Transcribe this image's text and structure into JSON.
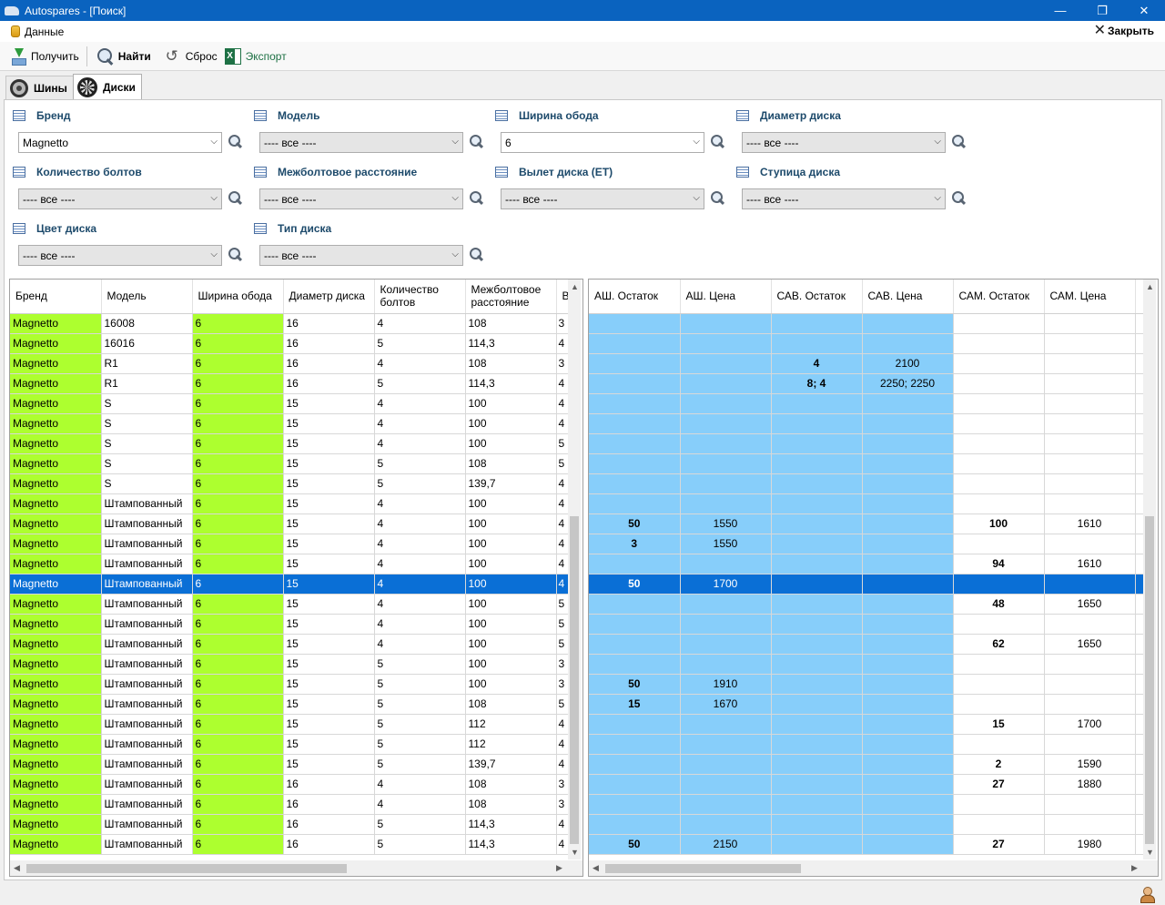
{
  "window": {
    "title": "Autospares - [Поиск]"
  },
  "menu": {
    "data_label": "Данные",
    "close_label": "Закрыть"
  },
  "toolbar": {
    "get_label": "Получить",
    "find_label": "Найти",
    "reset_label": "Сброс",
    "export_label": "Экспорт"
  },
  "tabs": [
    {
      "label": "Шины"
    },
    {
      "label": "Диски"
    }
  ],
  "filters": [
    {
      "label": "Бренд",
      "value": "Magnetto"
    },
    {
      "label": "Модель",
      "value": "---- все ----"
    },
    {
      "label": "Ширина обода",
      "value": "6"
    },
    {
      "label": "Диаметр диска",
      "value": "---- все ----"
    },
    {
      "label": "Количество болтов",
      "value": "---- все ----"
    },
    {
      "label": "Межболтовое расстояние",
      "value": "---- все ----"
    },
    {
      "label": "Вылет диска (ET)",
      "value": "---- все ----"
    },
    {
      "label": "Ступица диска",
      "value": "---- все ----"
    },
    {
      "label": "Цвет диска",
      "value": "---- все ----"
    },
    {
      "label": "Тип диска",
      "value": "---- все ----"
    }
  ],
  "left_grid": {
    "columns": [
      "Бренд",
      "Модель",
      "Ширина обода",
      "Диаметр диска",
      "Количество болтов",
      "Межболтовое расстояние",
      "В("
    ],
    "rows": [
      [
        "Magnetto",
        "16008",
        "6",
        "16",
        "4",
        "108",
        "3"
      ],
      [
        "Magnetto",
        "16016",
        "6",
        "16",
        "5",
        "114,3",
        "4"
      ],
      [
        "Magnetto",
        "R1",
        "6",
        "16",
        "4",
        "108",
        "3"
      ],
      [
        "Magnetto",
        "R1",
        "6",
        "16",
        "5",
        "114,3",
        "4"
      ],
      [
        "Magnetto",
        "S",
        "6",
        "15",
        "4",
        "100",
        "4"
      ],
      [
        "Magnetto",
        "S",
        "6",
        "15",
        "4",
        "100",
        "4"
      ],
      [
        "Magnetto",
        "S",
        "6",
        "15",
        "4",
        "100",
        "5"
      ],
      [
        "Magnetto",
        "S",
        "6",
        "15",
        "5",
        "108",
        "5"
      ],
      [
        "Magnetto",
        "S",
        "6",
        "15",
        "5",
        "139,7",
        "4"
      ],
      [
        "Magnetto",
        "Штампованный",
        "6",
        "15",
        "4",
        "100",
        "4"
      ],
      [
        "Magnetto",
        "Штампованный",
        "6",
        "15",
        "4",
        "100",
        "4"
      ],
      [
        "Magnetto",
        "Штампованный",
        "6",
        "15",
        "4",
        "100",
        "4"
      ],
      [
        "Magnetto",
        "Штампованный",
        "6",
        "15",
        "4",
        "100",
        "4"
      ],
      [
        "Magnetto",
        "Штампованный",
        "6",
        "15",
        "4",
        "100",
        "4"
      ],
      [
        "Magnetto",
        "Штампованный",
        "6",
        "15",
        "4",
        "100",
        "5"
      ],
      [
        "Magnetto",
        "Штампованный",
        "6",
        "15",
        "4",
        "100",
        "5"
      ],
      [
        "Magnetto",
        "Штампованный",
        "6",
        "15",
        "4",
        "100",
        "5"
      ],
      [
        "Magnetto",
        "Штампованный",
        "6",
        "15",
        "5",
        "100",
        "3"
      ],
      [
        "Magnetto",
        "Штампованный",
        "6",
        "15",
        "5",
        "100",
        "3"
      ],
      [
        "Magnetto",
        "Штампованный",
        "6",
        "15",
        "5",
        "108",
        "5"
      ],
      [
        "Magnetto",
        "Штампованный",
        "6",
        "15",
        "5",
        "112",
        "4"
      ],
      [
        "Magnetto",
        "Штампованный",
        "6",
        "15",
        "5",
        "112",
        "4"
      ],
      [
        "Magnetto",
        "Штампованный",
        "6",
        "15",
        "5",
        "139,7",
        "4"
      ],
      [
        "Magnetto",
        "Штампованный",
        "6",
        "16",
        "4",
        "108",
        "3"
      ],
      [
        "Magnetto",
        "Штампованный",
        "6",
        "16",
        "4",
        "108",
        "3"
      ],
      [
        "Magnetto",
        "Штампованный",
        "6",
        "16",
        "5",
        "114,3",
        "4"
      ],
      [
        "Magnetto",
        "Штампованный",
        "6",
        "16",
        "5",
        "114,3",
        "4"
      ]
    ]
  },
  "right_grid": {
    "columns": [
      "АШ. Остаток",
      "АШ. Цена",
      "САВ. Остаток",
      "САВ. Цена",
      "САМ. Остаток",
      "САМ. Цена",
      ""
    ],
    "rows": [
      [
        "",
        "",
        "",
        "",
        "",
        "",
        ""
      ],
      [
        "",
        "",
        "",
        "",
        "",
        "",
        ""
      ],
      [
        "",
        "",
        "4",
        "2100",
        "",
        "",
        ""
      ],
      [
        "",
        "",
        "8; 4",
        "2250; 2250",
        "",
        "",
        ""
      ],
      [
        "",
        "",
        "",
        "",
        "",
        "",
        ""
      ],
      [
        "",
        "",
        "",
        "",
        "",
        "",
        ""
      ],
      [
        "",
        "",
        "",
        "",
        "",
        "",
        ""
      ],
      [
        "",
        "",
        "",
        "",
        "",
        "",
        ""
      ],
      [
        "",
        "",
        "",
        "",
        "",
        "",
        ""
      ],
      [
        "",
        "",
        "",
        "",
        "",
        "",
        ""
      ],
      [
        "50",
        "1550",
        "",
        "",
        "100",
        "1610",
        ""
      ],
      [
        "3",
        "1550",
        "",
        "",
        "",
        "",
        ""
      ],
      [
        "",
        "",
        "",
        "",
        "94",
        "1610",
        ""
      ],
      [
        "50",
        "1700",
        "",
        "",
        "",
        "",
        ""
      ],
      [
        "",
        "",
        "",
        "",
        "48",
        "1650",
        ""
      ],
      [
        "",
        "",
        "",
        "",
        "",
        "",
        ""
      ],
      [
        "",
        "",
        "",
        "",
        "62",
        "1650",
        ""
      ],
      [
        "",
        "",
        "",
        "",
        "",
        "",
        ""
      ],
      [
        "50",
        "1910",
        "",
        "",
        "",
        "",
        ""
      ],
      [
        "15",
        "1670",
        "",
        "",
        "",
        "",
        ""
      ],
      [
        "",
        "",
        "",
        "",
        "15",
        "1700",
        ""
      ],
      [
        "",
        "",
        "",
        "",
        "",
        "",
        ""
      ],
      [
        "",
        "",
        "",
        "",
        "2",
        "1590",
        ""
      ],
      [
        "",
        "",
        "",
        "",
        "27",
        "1880",
        ""
      ],
      [
        "",
        "",
        "",
        "",
        "",
        "",
        ""
      ],
      [
        "",
        "",
        "",
        "",
        "",
        "",
        ""
      ],
      [
        "50",
        "2150",
        "",
        "",
        "27",
        "1980",
        ""
      ]
    ]
  },
  "selected_row_index": 13,
  "colors": {
    "brand_cell": "#adff2f",
    "stock_cell": "#87cefa",
    "selection": "#0a6fd6",
    "titlebar": "#0a63bf"
  }
}
